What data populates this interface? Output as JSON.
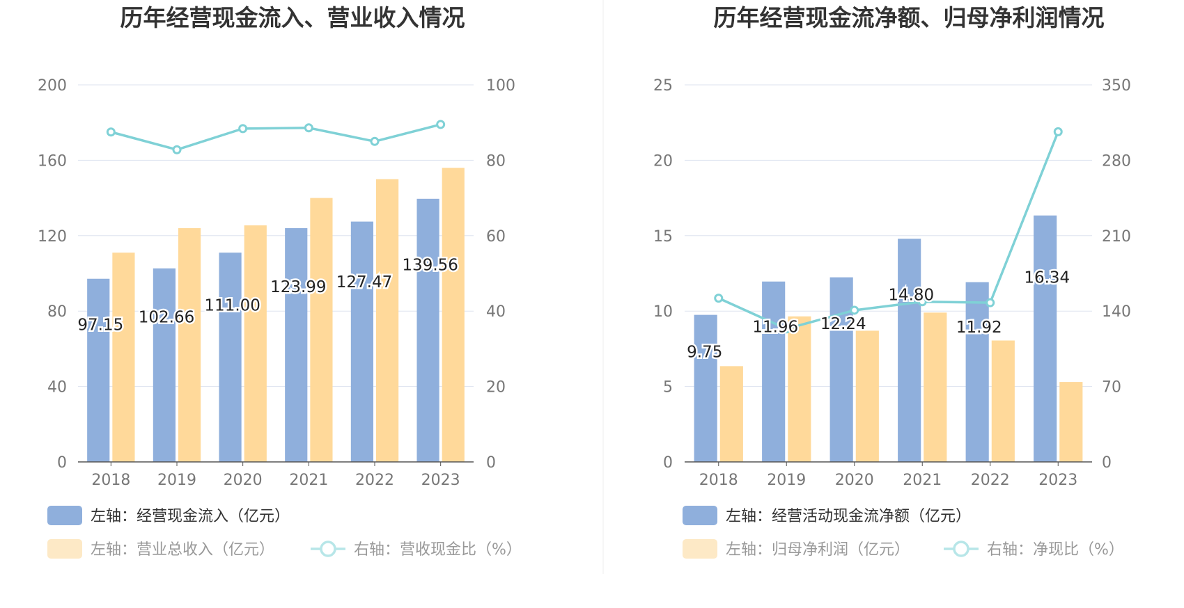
{
  "colors": {
    "bar_blue": "#8fafdc",
    "bar_yellow": "#ffd99a",
    "line": "#7fd1d6",
    "grid": "#dde3ef",
    "axis": "#555555",
    "divider": "#eeeeee",
    "legend_yellow_muted": "#fde9c6",
    "legend_line_muted": "#b7e6e8"
  },
  "chart_data": [
    {
      "type": "bar",
      "title": "历年经营现金流入、营业收入情况",
      "categories": [
        "2018",
        "2019",
        "2020",
        "2021",
        "2022",
        "2023"
      ],
      "left_axis": {
        "ylim": [
          0,
          200
        ],
        "ticks": [
          "0",
          "40",
          "80",
          "120",
          "160",
          "200"
        ]
      },
      "right_axis": {
        "ylim": [
          0,
          100
        ],
        "ticks": [
          "0",
          "20",
          "40",
          "60",
          "80",
          "100"
        ]
      },
      "series": [
        {
          "name": "左轴：经营现金流入（亿元）",
          "kind": "bar",
          "axis": "left",
          "color": "#8fafdc",
          "values": [
            97.15,
            102.66,
            111.0,
            123.99,
            127.47,
            139.56
          ],
          "labels": [
            "97.15",
            "102.66",
            "111.00",
            "123.99",
            "127.47",
            "139.56"
          ]
        },
        {
          "name": "左轴：营业总收入（亿元）",
          "kind": "bar",
          "axis": "left",
          "color": "#ffd99a",
          "values": [
            111,
            124,
            125.5,
            140,
            150,
            156
          ]
        },
        {
          "name": "右轴：营收现金比（%）",
          "kind": "line",
          "axis": "right",
          "color": "#7fd1d6",
          "values": [
            87.5,
            82.8,
            88.4,
            88.6,
            85.0,
            89.5
          ]
        }
      ],
      "legend": [
        {
          "label": "左轴：经营现金流入（亿元）",
          "marker": "bar",
          "color": "#8fafdc",
          "active": true
        },
        {
          "label": "左轴：营业总收入（亿元）",
          "marker": "bar",
          "color": "#fde9c6",
          "active": false
        },
        {
          "label": "右轴：营收现金比（%）",
          "marker": "line",
          "color": "#b7e6e8",
          "active": false
        }
      ]
    },
    {
      "type": "bar",
      "title": "历年经营现金流净额、归母净利润情况",
      "categories": [
        "2018",
        "2019",
        "2020",
        "2021",
        "2022",
        "2023"
      ],
      "left_axis": {
        "ylim": [
          0,
          25
        ],
        "ticks": [
          "0",
          "5",
          "10",
          "15",
          "20",
          "25"
        ]
      },
      "right_axis": {
        "ylim": [
          0,
          350
        ],
        "ticks": [
          "0",
          "70",
          "140",
          "210",
          "280",
          "350"
        ]
      },
      "series": [
        {
          "name": "左轴：经营活动现金流净额（亿元）",
          "kind": "bar",
          "axis": "left",
          "color": "#8fafdc",
          "values": [
            9.75,
            11.96,
            12.24,
            14.8,
            11.92,
            16.34
          ],
          "labels": [
            "9.75",
            "11.96",
            "12.24",
            "14.80",
            "11.92",
            "16.34"
          ]
        },
        {
          "name": "左轴：归母净利润（亿元）",
          "kind": "bar",
          "axis": "left",
          "color": "#ffd99a",
          "values": [
            6.35,
            9.65,
            8.7,
            9.9,
            8.05,
            5.3
          ]
        },
        {
          "name": "右轴：净现比（%）",
          "kind": "line",
          "axis": "right",
          "color": "#7fd1d6",
          "values": [
            152,
            123.5,
            140.8,
            148.7,
            147.8,
            306.5
          ]
        }
      ],
      "legend": [
        {
          "label": "左轴：经营活动现金流净额（亿元）",
          "marker": "bar",
          "color": "#8fafdc",
          "active": true
        },
        {
          "label": "左轴：归母净利润（亿元）",
          "marker": "bar",
          "color": "#fde9c6",
          "active": false
        },
        {
          "label": "右轴：净现比（%）",
          "marker": "line",
          "color": "#b7e6e8",
          "active": false
        }
      ]
    }
  ]
}
